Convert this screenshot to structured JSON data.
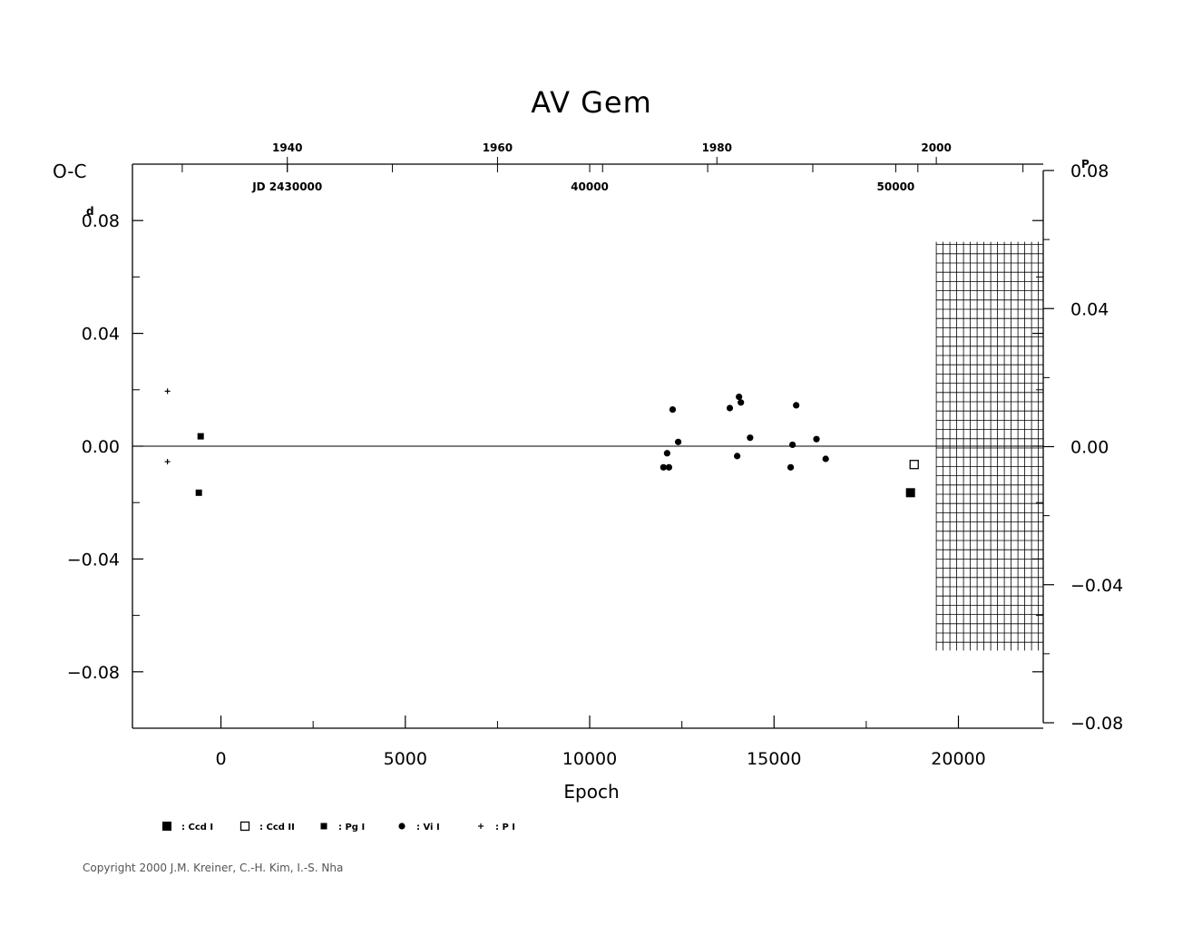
{
  "chart_data": {
    "type": "scatter",
    "title": "AV  Gem",
    "xlabel": "Epoch",
    "ylabel": "O-C",
    "ylabel_unit": "d",
    "right_unit": "P",
    "xlim": [
      -2400,
      22300
    ],
    "ylim": [
      -0.1,
      0.1
    ],
    "right_ylim": [
      -0.08,
      0.08
    ],
    "x_ticks": [
      "0",
      "5000",
      "10000",
      "15000",
      "20000"
    ],
    "x_tick_values": [
      0,
      5000,
      10000,
      15000,
      20000
    ],
    "y_ticks": [
      "0.08",
      "0.04",
      "0.00",
      "−0.04",
      "−0.08"
    ],
    "y_tick_values": [
      0.08,
      0.04,
      0.0,
      -0.04,
      -0.08
    ],
    "right_ticks": [
      "0.08",
      "0.04",
      "0.00",
      "−0.04",
      "−0.08"
    ],
    "right_tick_values": [
      0.08,
      0.04,
      0.0,
      -0.04,
      -0.08
    ],
    "top_year_ticks": [
      {
        "label": "1940",
        "epoch": 1800
      },
      {
        "label": "1960",
        "epoch": 7500
      },
      {
        "label": "1980",
        "epoch": 13450
      },
      {
        "label": "2000",
        "epoch": 19400
      }
    ],
    "jd_labels": [
      {
        "label": "JD  2430000",
        "epoch": 1800
      },
      {
        "label": "40000",
        "epoch": 10000
      },
      {
        "label": "50000",
        "epoch": 18300
      }
    ],
    "grid": false,
    "series": [
      {
        "name": "Ccd I",
        "marker": "filled-square-large",
        "points": [
          [
            18700,
            -0.0165
          ]
        ]
      },
      {
        "name": "Ccd II",
        "marker": "open-square",
        "points": [
          [
            18800,
            -0.0065
          ]
        ]
      },
      {
        "name": "Pg I",
        "marker": "filled-square-small",
        "points": [
          [
            -550,
            0.0035
          ],
          [
            -600,
            -0.0165
          ]
        ]
      },
      {
        "name": "Vi I",
        "marker": "filled-circle",
        "points": [
          [
            12000,
            -0.0075
          ],
          [
            12150,
            -0.0075
          ],
          [
            12100,
            -0.0025
          ],
          [
            12250,
            0.013
          ],
          [
            12400,
            0.0015
          ],
          [
            13800,
            0.0135
          ],
          [
            14000,
            -0.0035
          ],
          [
            14050,
            0.0175
          ],
          [
            14100,
            0.0155
          ],
          [
            14350,
            0.003
          ],
          [
            15450,
            -0.0075
          ],
          [
            15500,
            0.0005
          ],
          [
            15600,
            0.0145
          ],
          [
            16150,
            0.0025
          ],
          [
            16400,
            -0.0045
          ]
        ]
      },
      {
        "name": "P I",
        "marker": "plus",
        "points": [
          [
            -1450,
            0.0195
          ],
          [
            -1450,
            -0.0055
          ]
        ]
      }
    ],
    "legend": [
      {
        "label": ": Ccd  I",
        "marker": "filled-square-large"
      },
      {
        "label": ": Ccd  II",
        "marker": "open-square"
      },
      {
        "label": ": Pg  I",
        "marker": "filled-square-small"
      },
      {
        "label": ": Vi  I",
        "marker": "filled-circle"
      },
      {
        "label": ": P  I",
        "marker": "plus"
      }
    ],
    "legend_position": "bottom-left",
    "hatched_region": {
      "x_start": 19400,
      "x_end": 22300,
      "y_start": 0.0715,
      "y_end": -0.0715
    }
  },
  "copyright": "Copyright 2000 J.M. Kreiner, C.-H. Kim, I.-S. Nha"
}
